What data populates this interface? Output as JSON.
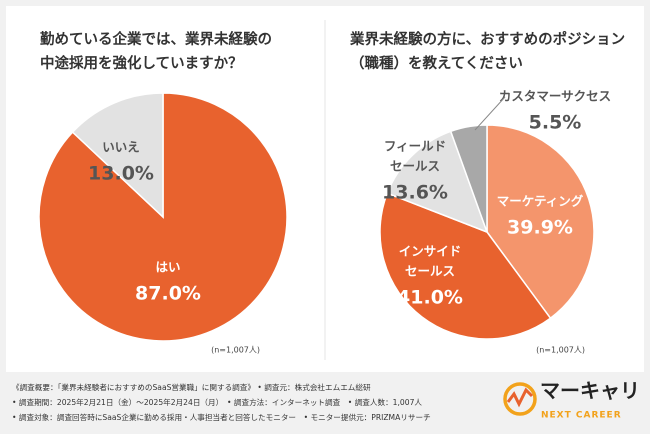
{
  "chart_data": [
    {
      "type": "pie",
      "title_lines": [
        "勤めている企業では、業界未経験の",
        "中途採用を強化していますか？"
      ],
      "categories": [
        [
          "はい"
        ],
        [
          "いいえ"
        ]
      ],
      "values": [
        87.0,
        13.0
      ],
      "value_labels": [
        "87.0%",
        "13.0%"
      ],
      "colors": [
        "#e8622e",
        "#e2e2e2"
      ],
      "note": "(n=1,007人)"
    },
    {
      "type": "pie",
      "title_lines": [
        "業界未経験の方に、おすすめのポジション",
        "（職種）を教えてください"
      ],
      "categories": [
        [
          "マーケティング"
        ],
        [
          "インサイド",
          "セールス"
        ],
        [
          "フィールド",
          "セールス"
        ],
        [
          "カスタマーサクセス"
        ]
      ],
      "values": [
        39.9,
        41.0,
        13.6,
        5.5
      ],
      "value_labels": [
        "39.9%",
        "41.0%",
        "13.6%",
        "5.5%"
      ],
      "colors": [
        "#f4956c",
        "#e8622e",
        "#e2e2e2",
        "#a8a8a8"
      ],
      "note": "(n=1,007人)"
    }
  ],
  "footer": {
    "lines": [
      "《調査概要：「業界未経験者におすすめのSaaS営業職」に関する調査》 • 調査元：株式会社エムエム総研",
      "• 調査期間：2025年2月21日（金）～2025年2月24日（月）　• 調査方法：インターネット調査　• 調査人数：1,007人",
      "• 調査対象：調査回答時にSaaS企業に勤める採用・人事担当者と回答したモニター　• モニター提供元：PRIZMAリサーチ"
    ]
  },
  "logo": {
    "name": "マーキャリ",
    "tagline": "NEXT CAREER"
  }
}
